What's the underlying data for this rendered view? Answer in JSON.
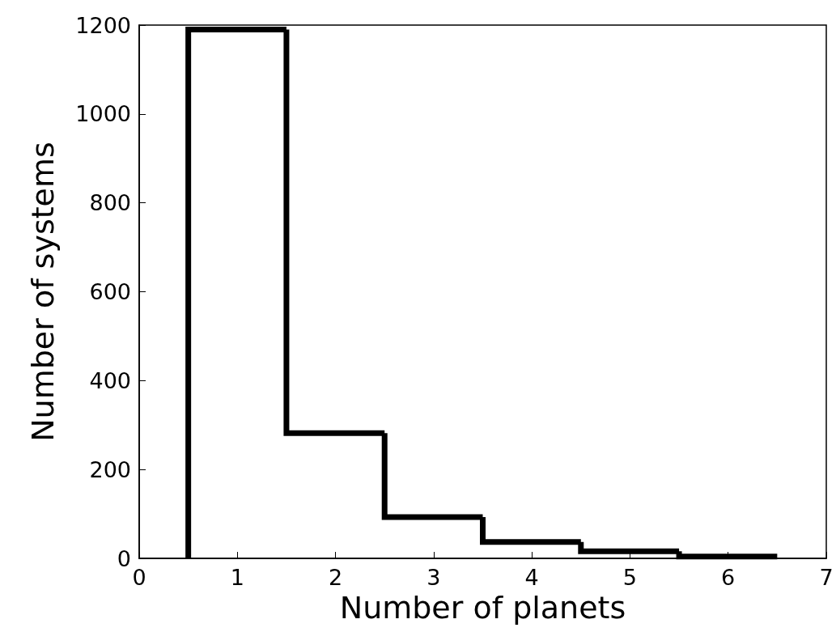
{
  "chart_data": {
    "type": "histogram",
    "xlabel": "Number of planets",
    "ylabel": "Number of systems",
    "bins": [
      0.5,
      1.5,
      2.5,
      3.5,
      4.5,
      5.5,
      6.5
    ],
    "values": [
      1190,
      282,
      93,
      37,
      16,
      4
    ],
    "color": "#000000",
    "xlim": [
      0,
      7
    ],
    "xticks": [
      0,
      1,
      2,
      3,
      4,
      5,
      6,
      7
    ],
    "ylim": [
      0,
      1200
    ],
    "yticks": [
      0,
      200,
      400,
      600,
      800,
      1000,
      1200
    ],
    "grid": false
  }
}
